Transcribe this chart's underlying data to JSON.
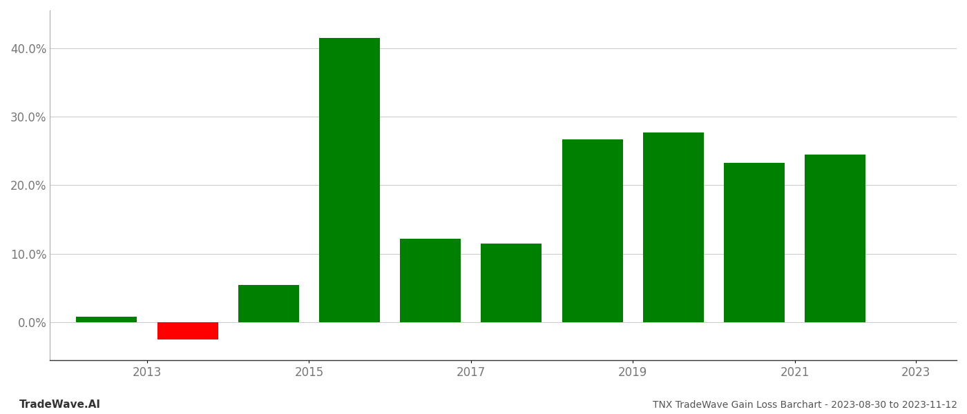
{
  "years": [
    2013,
    2014,
    2015,
    2016,
    2017,
    2018,
    2019,
    2020,
    2021,
    2022
  ],
  "values": [
    0.008,
    -0.025,
    0.055,
    0.415,
    0.122,
    0.115,
    0.267,
    0.277,
    0.233,
    0.245
  ],
  "colors": [
    "#008000",
    "#ff0000",
    "#008000",
    "#008000",
    "#008000",
    "#008000",
    "#008000",
    "#008000",
    "#008000",
    "#008000"
  ],
  "title": "TNX TradeWave Gain Loss Barchart - 2023-08-30 to 2023-11-12",
  "watermark": "TradeWave.AI",
  "ylim_min": -0.055,
  "ylim_max": 0.455,
  "background_color": "#ffffff",
  "grid_color": "#cccccc",
  "bar_width": 0.75,
  "xtick_positions": [
    2013.5,
    2015.5,
    2017.5,
    2019.5,
    2021.5,
    2023
  ],
  "xtick_labels": [
    "2013",
    "2015",
    "2017",
    "2019",
    "2021",
    "2023"
  ],
  "xlim_min": 2012.3,
  "xlim_max": 2023.5
}
